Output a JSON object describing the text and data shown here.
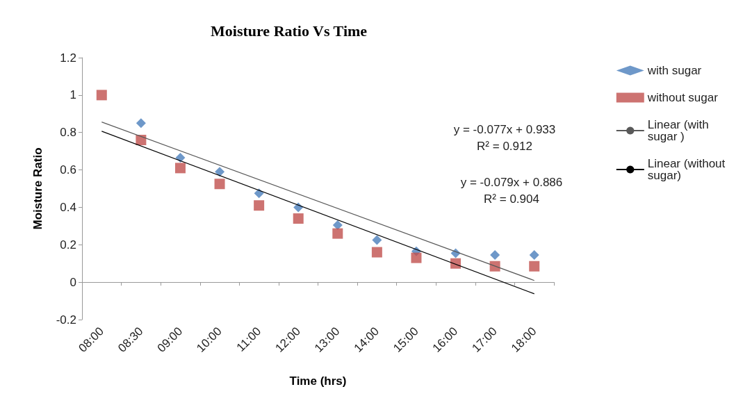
{
  "chart_data": {
    "type": "scatter",
    "title": "Moisture Ratio Vs Time",
    "xlabel": "Time (hrs)",
    "ylabel": "Moisture Ratio",
    "categories": [
      "08:00",
      "08:30",
      "09:00",
      "10:00",
      "11:00",
      "12:00",
      "13:00",
      "14:00",
      "15:00",
      "16:00",
      "17:00",
      "18:00"
    ],
    "series": [
      {
        "name": "with sugar",
        "color": "#4a7ebb",
        "marker": "diamond",
        "values": [
          null,
          0.85,
          0.665,
          0.59,
          0.475,
          0.4,
          0.305,
          0.225,
          0.165,
          0.155,
          0.145,
          0.145
        ]
      },
      {
        "name": "without sugar",
        "color": "#c0504d",
        "marker": "square",
        "values": [
          1,
          0.76,
          0.61,
          0.525,
          0.41,
          0.34,
          0.26,
          0.16,
          0.13,
          0.1,
          0.085,
          0.085
        ]
      },
      {
        "name": "Linear (with sugar )",
        "type": "line",
        "color": "#595959",
        "line_style": "solid",
        "x": [
          "08:00",
          "18:00"
        ],
        "values": [
          0.856,
          0.009
        ]
      },
      {
        "name": "Linear (without sugar)",
        "type": "line",
        "color": "#000000",
        "line_style": "solid",
        "x": [
          "08:00",
          "18:00"
        ],
        "values": [
          0.807,
          -0.062
        ]
      }
    ],
    "annotations": [
      "y = -0.077x + 0.933",
      "R² = 0.912",
      "y = -0.079x + 0.886",
      "R² = 0.904"
    ],
    "ylim": [
      -0.2,
      1.2
    ],
    "yticks": [
      -0.2,
      0,
      0.2,
      0.4,
      0.6,
      0.8,
      1,
      1.2
    ],
    "legend": "right"
  }
}
